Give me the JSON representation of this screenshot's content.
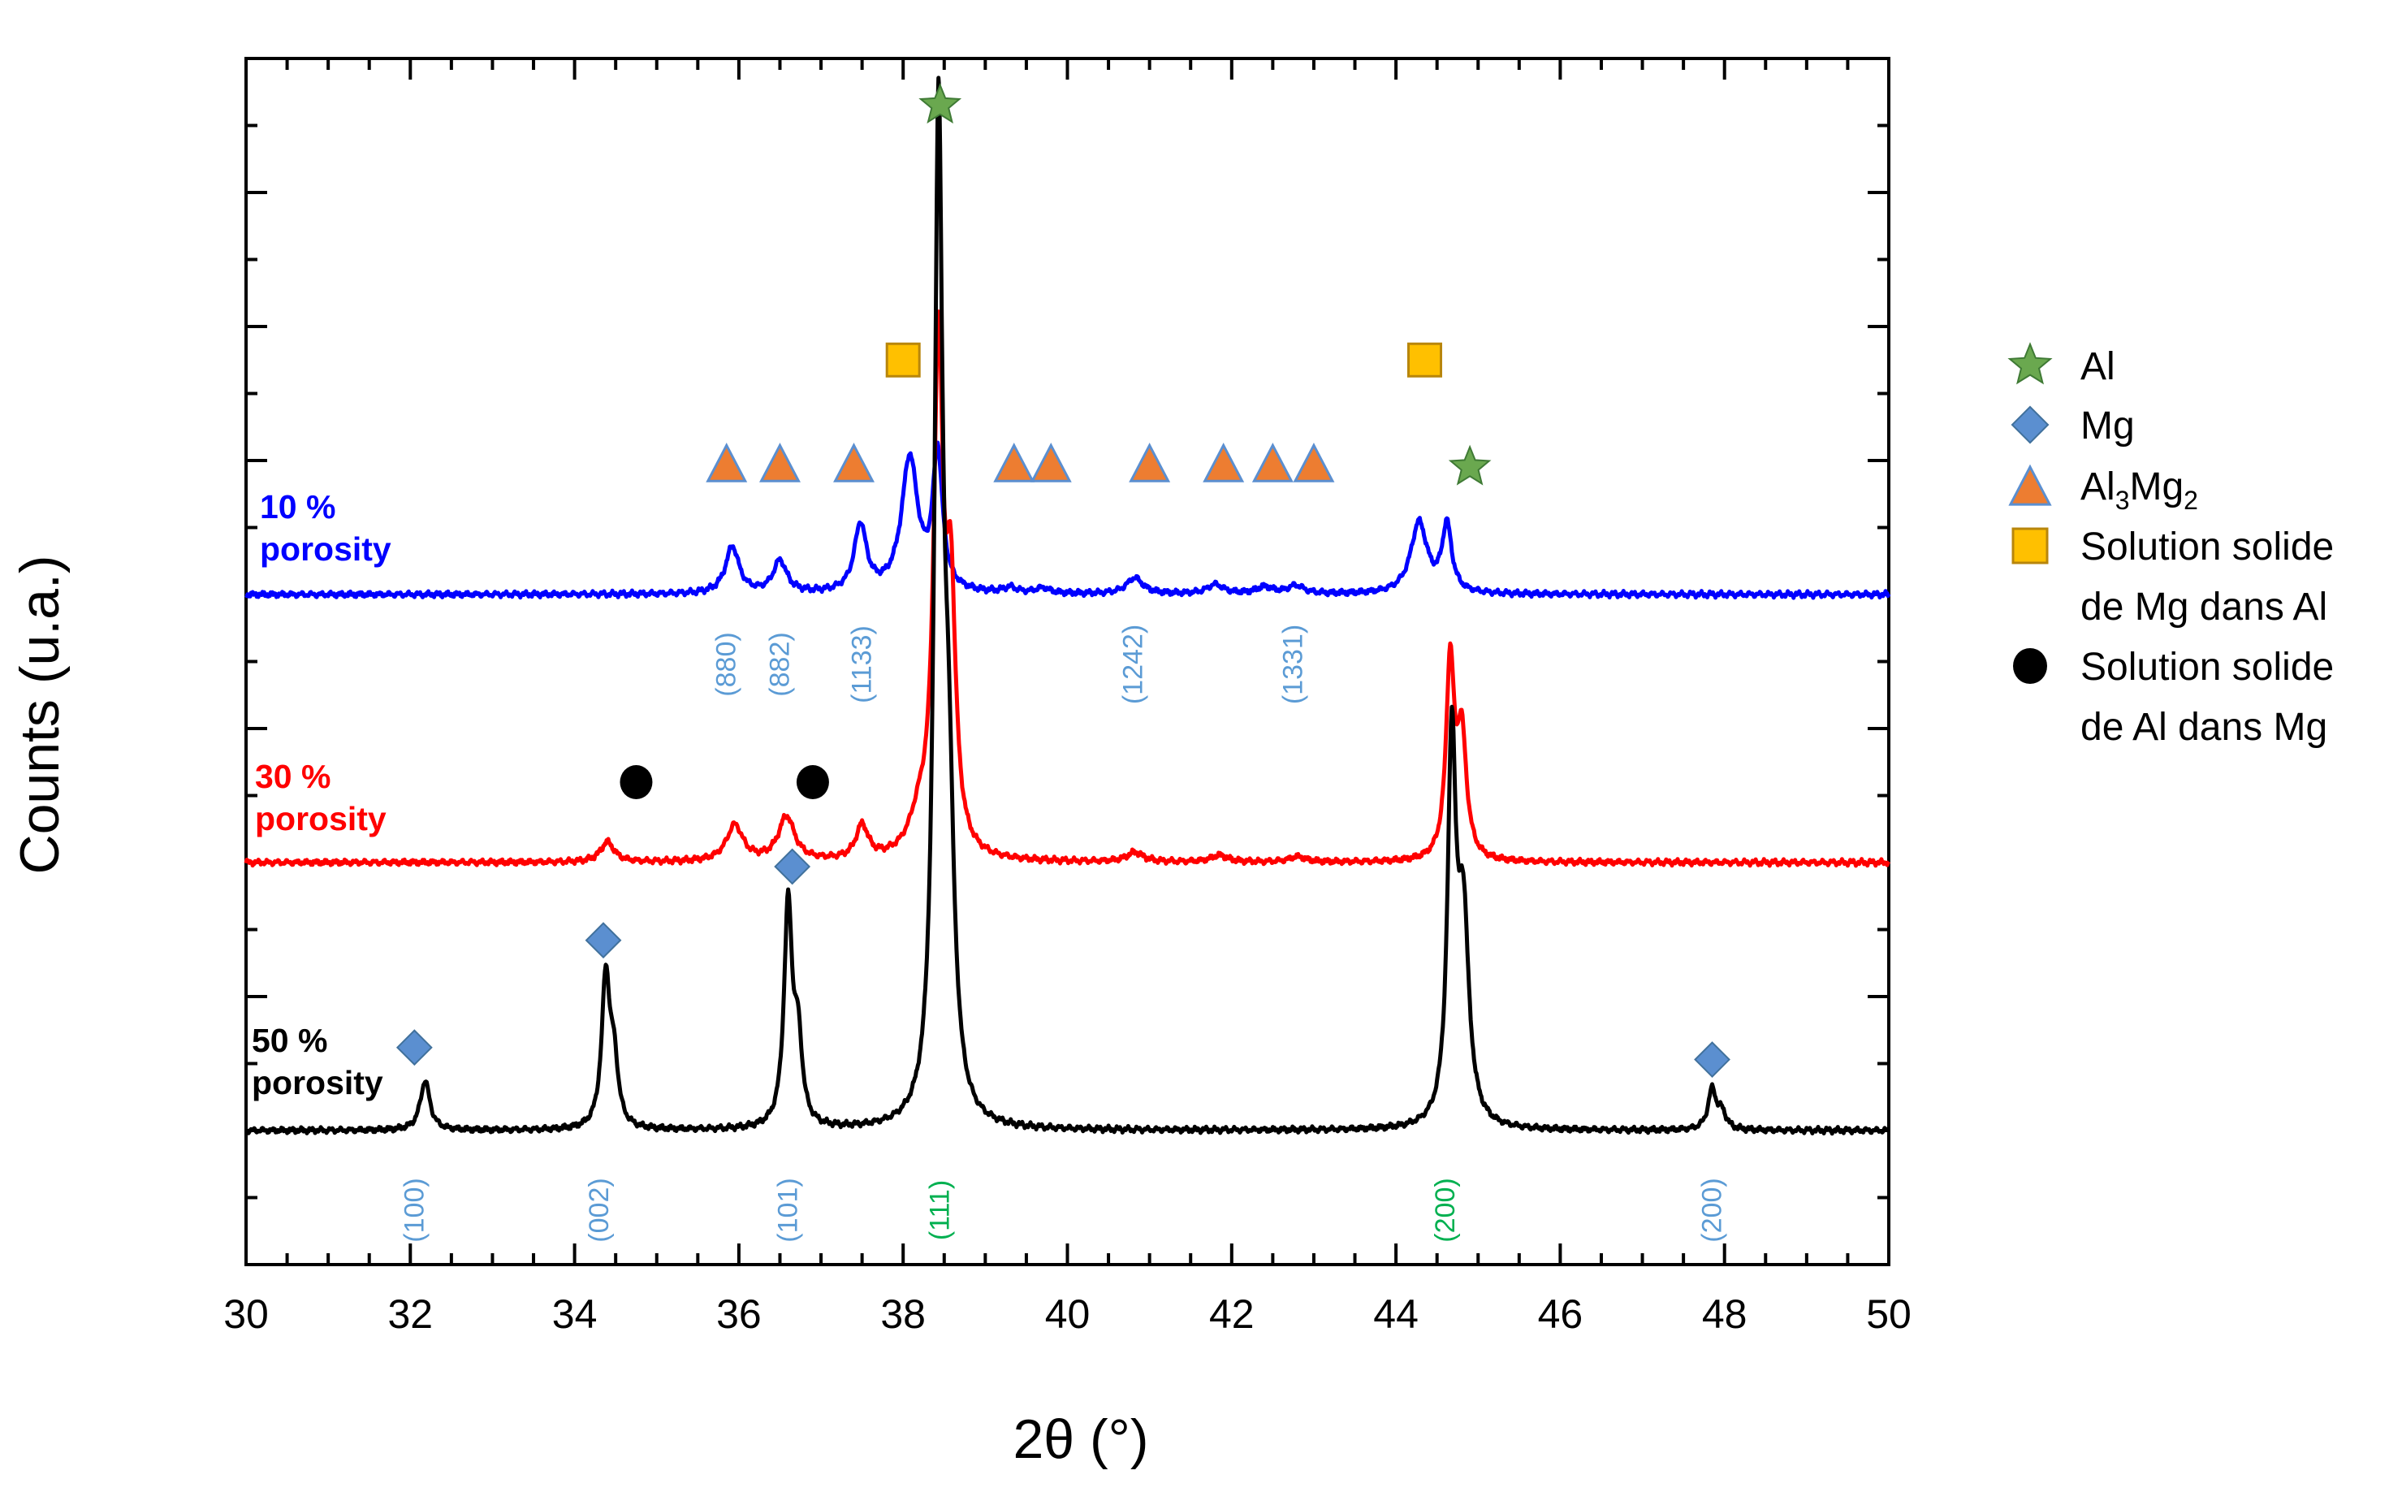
{
  "colors": {
    "blue_series": "#0000ff",
    "red_series": "#ff0000",
    "black_series": "#000000",
    "Al_star": "#6aa84f",
    "Mg_diamond": "#5b8fd0",
    "Al3Mg2_triangle": "#ed7d31",
    "Mg_in_Al_square": "#ffc000",
    "Al_in_Mg_circle": "#000000",
    "hkl_Mg": "#5b9bd5",
    "hkl_Al": "#00b050"
  },
  "chart_data": {
    "type": "line",
    "title": "",
    "xlabel": "2θ (°)",
    "ylabel": "Counts (u.a.)",
    "xlim": [
      30,
      50
    ],
    "ylim": [
      0,
      9
    ],
    "x_ticks": [
      "30",
      "32",
      "34",
      "36",
      "38",
      "40",
      "42",
      "44",
      "46",
      "48",
      "50"
    ],
    "y_tick_labels": "none",
    "series": [
      {
        "name": "10 % porosity",
        "label_line1": "10 %",
        "label_line2": "porosity",
        "color": "#0000ff",
        "baseline": 5.0,
        "peaks": [
          {
            "x": 35.92,
            "height": 0.35,
            "width": 0.1
          },
          {
            "x": 36.5,
            "height": 0.24,
            "width": 0.1
          },
          {
            "x": 37.48,
            "height": 0.5,
            "width": 0.09
          },
          {
            "x": 38.08,
            "height": 1.0,
            "width": 0.12
          },
          {
            "x": 38.42,
            "height": 1.02,
            "width": 0.07
          },
          {
            "x": 39.3,
            "height": 0.04,
            "width": 0.1
          },
          {
            "x": 39.7,
            "height": 0.04,
            "width": 0.1
          },
          {
            "x": 40.82,
            "height": 0.12,
            "width": 0.12
          },
          {
            "x": 41.8,
            "height": 0.07,
            "width": 0.12
          },
          {
            "x": 42.4,
            "height": 0.05,
            "width": 0.12
          },
          {
            "x": 42.78,
            "height": 0.06,
            "width": 0.12
          },
          {
            "x": 44.28,
            "height": 0.53,
            "width": 0.12
          },
          {
            "x": 44.62,
            "height": 0.5,
            "width": 0.07
          }
        ]
      },
      {
        "name": "30 % porosity",
        "label_line1": "30 %",
        "label_line2": "porosity",
        "color": "#ff0000",
        "baseline": 3.0,
        "peaks": [
          {
            "x": 34.4,
            "height": 0.15,
            "width": 0.1
          },
          {
            "x": 35.95,
            "height": 0.27,
            "width": 0.12
          },
          {
            "x": 36.58,
            "height": 0.33,
            "width": 0.12
          },
          {
            "x": 37.5,
            "height": 0.25,
            "width": 0.09
          },
          {
            "x": 38.2,
            "height": 0.25,
            "width": 0.15
          },
          {
            "x": 38.43,
            "height": 3.7,
            "width": 0.07
          },
          {
            "x": 38.58,
            "height": 1.8,
            "width": 0.07
          },
          {
            "x": 40.82,
            "height": 0.07,
            "width": 0.12
          },
          {
            "x": 41.85,
            "height": 0.05,
            "width": 0.12
          },
          {
            "x": 42.8,
            "height": 0.04,
            "width": 0.12
          },
          {
            "x": 44.66,
            "height": 1.45,
            "width": 0.06
          },
          {
            "x": 44.8,
            "height": 0.9,
            "width": 0.07
          }
        ]
      },
      {
        "name": "50 % porosity",
        "label_line1": "50 %",
        "label_line2": "porosity",
        "color": "#000000",
        "baseline": 1.0,
        "peaks": [
          {
            "x": 32.18,
            "height": 0.37,
            "width": 0.07
          },
          {
            "x": 34.38,
            "height": 1.12,
            "width": 0.06
          },
          {
            "x": 34.48,
            "height": 0.45,
            "width": 0.06
          },
          {
            "x": 36.6,
            "height": 1.65,
            "width": 0.06
          },
          {
            "x": 36.72,
            "height": 0.6,
            "width": 0.06
          },
          {
            "x": 38.43,
            "height": 7.2,
            "width": 0.06
          },
          {
            "x": 38.55,
            "height": 2.2,
            "width": 0.08
          },
          {
            "x": 44.68,
            "height": 2.8,
            "width": 0.06
          },
          {
            "x": 44.82,
            "height": 1.5,
            "width": 0.08
          },
          {
            "x": 47.85,
            "height": 0.3,
            "width": 0.06
          },
          {
            "x": 47.97,
            "height": 0.12,
            "width": 0.06
          }
        ]
      }
    ],
    "phase_markers": [
      {
        "phase": "Al",
        "shape": "star",
        "x": 38.45,
        "y": 8.65
      },
      {
        "phase": "Al",
        "shape": "star",
        "x": 44.9,
        "y": 5.95
      },
      {
        "phase": "Solution solide de Mg dans Al",
        "shape": "square",
        "x": 38.0,
        "y": 6.75
      },
      {
        "phase": "Solution solide de Mg dans Al",
        "shape": "square",
        "x": 44.35,
        "y": 6.75
      },
      {
        "phase": "Al3Mg2",
        "shape": "triangle",
        "x": 35.85,
        "y": 5.98
      },
      {
        "phase": "Al3Mg2",
        "shape": "triangle",
        "x": 36.5,
        "y": 5.98
      },
      {
        "phase": "Al3Mg2",
        "shape": "triangle",
        "x": 37.4,
        "y": 5.98
      },
      {
        "phase": "Al3Mg2",
        "shape": "triangle",
        "x": 39.35,
        "y": 5.98
      },
      {
        "phase": "Al3Mg2",
        "shape": "triangle",
        "x": 39.8,
        "y": 5.98
      },
      {
        "phase": "Al3Mg2",
        "shape": "triangle",
        "x": 41.0,
        "y": 5.98
      },
      {
        "phase": "Al3Mg2",
        "shape": "triangle",
        "x": 41.9,
        "y": 5.98
      },
      {
        "phase": "Al3Mg2",
        "shape": "triangle",
        "x": 42.5,
        "y": 5.98
      },
      {
        "phase": "Al3Mg2",
        "shape": "triangle",
        "x": 43.0,
        "y": 5.98
      },
      {
        "phase": "Solution solide de Al dans Mg",
        "shape": "circle",
        "x": 34.75,
        "y": 3.6
      },
      {
        "phase": "Solution solide de Al dans Mg",
        "shape": "circle",
        "x": 36.9,
        "y": 3.6
      },
      {
        "phase": "Mg",
        "shape": "diamond",
        "x": 36.65,
        "y": 2.97
      },
      {
        "phase": "Mg",
        "shape": "diamond",
        "x": 34.35,
        "y": 2.42
      },
      {
        "phase": "Mg",
        "shape": "diamond",
        "x": 32.05,
        "y": 1.62
      },
      {
        "phase": "Mg",
        "shape": "diamond",
        "x": 47.85,
        "y": 1.53
      }
    ],
    "hkl_labels_upper": [
      {
        "text": "(880)",
        "x": 35.85,
        "phase": "Al3Mg2"
      },
      {
        "text": "(882)",
        "x": 36.5,
        "phase": "Al3Mg2"
      },
      {
        "text": "(1133)",
        "x": 37.5,
        "phase": "Al3Mg2"
      },
      {
        "text": "(1242)",
        "x": 40.8,
        "phase": "Al3Mg2"
      },
      {
        "text": "(1331)",
        "x": 42.75,
        "phase": "Al3Mg2"
      }
    ],
    "hkl_labels_lower": [
      {
        "text": "(100)",
        "x": 32.05,
        "phase": "Mg"
      },
      {
        "text": "(002)",
        "x": 34.3,
        "phase": "Mg"
      },
      {
        "text": "(101)",
        "x": 36.6,
        "phase": "Mg"
      },
      {
        "text": "(111)",
        "x": 38.45,
        "phase": "Al"
      },
      {
        "text": "(200)",
        "x": 44.6,
        "phase": "Al"
      },
      {
        "text": "(200)",
        "x": 47.85,
        "phase": "Mg"
      }
    ],
    "legend": {
      "placement": "right",
      "entries": [
        {
          "shape": "star",
          "lines": [
            "Al"
          ]
        },
        {
          "shape": "diamond",
          "lines": [
            "Mg"
          ]
        },
        {
          "shape": "triangle",
          "lines": [
            "Al",
            "3",
            "Mg",
            "2"
          ],
          "formula": true
        },
        {
          "shape": "square",
          "lines": [
            "Solution solide",
            "de Mg dans Al"
          ]
        },
        {
          "shape": "circle",
          "lines": [
            "Solution solide",
            "de Al dans Mg"
          ]
        }
      ]
    }
  }
}
